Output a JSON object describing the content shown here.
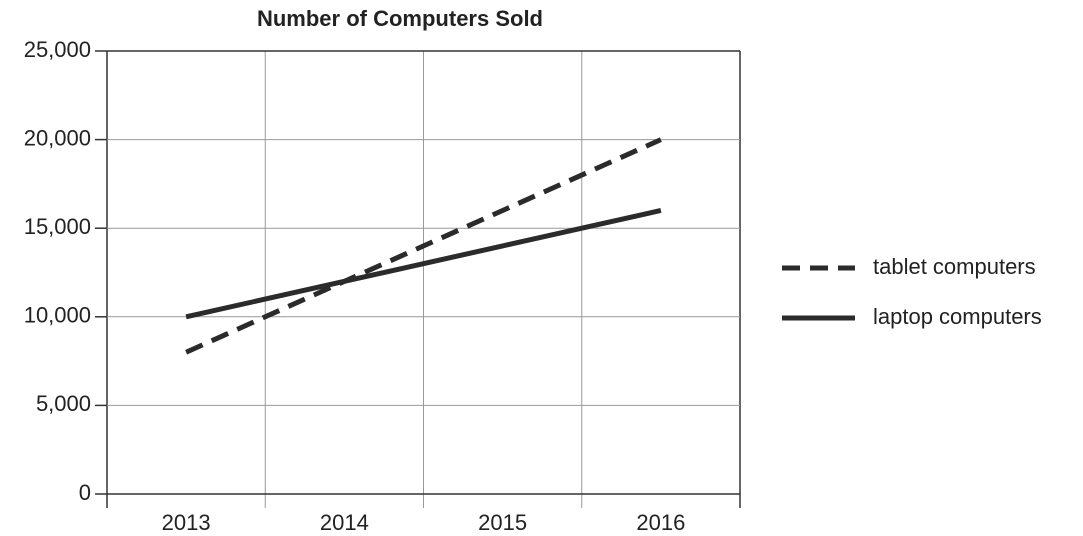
{
  "chart_data": {
    "type": "line",
    "title": "Number of Computers Sold",
    "categories": [
      "2013",
      "2014",
      "2015",
      "2016"
    ],
    "series": [
      {
        "name": "tablet computers",
        "color": "#2b2b2b",
        "dash": true,
        "values": [
          8000,
          12000,
          16000,
          20000
        ]
      },
      {
        "name": "laptop computers",
        "color": "#2b2b2b",
        "dash": false,
        "values": [
          10000,
          12000,
          14000,
          16000
        ]
      }
    ],
    "ylim": [
      0,
      25000
    ],
    "yticks": [
      0,
      {
        "value": 5000,
        "label": "5,000"
      },
      {
        "value": 10000,
        "label": "10,000"
      },
      {
        "value": 15000,
        "label": "15,000"
      },
      {
        "value": 20000,
        "label": "20,000"
      },
      {
        "value": 25000,
        "label": "25,000"
      }
    ],
    "grid": true,
    "legend": "right"
  }
}
